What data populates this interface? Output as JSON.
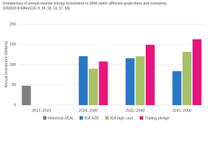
{
  "chart_data": {
    "type": "bar",
    "title_lines": [
      "Comparison of annual nuclear energy investment to 2050 under different projections and scenarios",
      "[US2023 $ billion] [4, 9, 10, 12, 13, 17, 18]."
    ],
    "y_label": "Annual investment (billions)",
    "categories": [
      "2017–2023",
      "2024–2030",
      "2031–2040",
      "2041–2050"
    ],
    "series": [
      {
        "name": "Historical (IEA)",
        "color": "#7f7f7f",
        "values": [
          48,
          null,
          null,
          null
        ]
      },
      {
        "name": "IEA NZE",
        "color": "#2b78c2",
        "values": [
          null,
          121,
          116,
          84
        ]
      },
      {
        "name": "IEA high case",
        "color": "#a5c26a",
        "values": [
          null,
          90,
          121,
          132
        ]
      },
      {
        "name": "Tripling pledge",
        "color": "#e0197d",
        "values": [
          null,
          108,
          149,
          163
        ]
      }
    ],
    "ylim": [
      0,
      200
    ],
    "yticks": [
      0,
      50,
      100,
      150,
      200
    ],
    "grid": true
  }
}
